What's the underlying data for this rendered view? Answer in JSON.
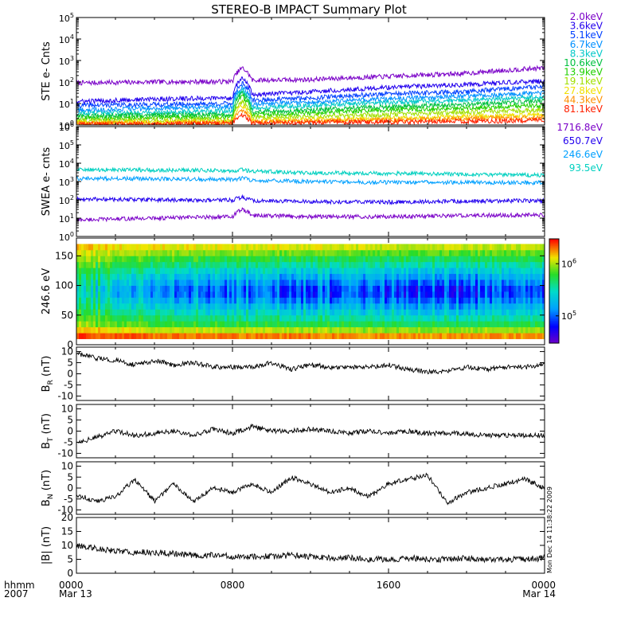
{
  "title": "STEREO-B IMPACT Summary Plot",
  "timestamp": "Mon Dec 14 11:38:22 2009",
  "x_axis": {
    "corner_labels": [
      "hhmm",
      "2007"
    ],
    "ticks": [
      {
        "hours": 0,
        "hhmm": "0000",
        "date": "Mar 13"
      },
      {
        "hours": 8,
        "hhmm": "0800",
        "date": ""
      },
      {
        "hours": 16,
        "hhmm": "1600",
        "date": ""
      },
      {
        "hours": 24,
        "hhmm": "0000",
        "date": "Mar 14"
      }
    ]
  },
  "colorbar": {
    "labels": [
      "10^6",
      "10^5"
    ],
    "label_values": [
      1000000,
      100000
    ],
    "range": [
      30000,
      3000000
    ],
    "scale": "log"
  },
  "chart_data": [
    {
      "type": "line",
      "id": "ste",
      "ylabel": "STE e- Cnts",
      "yscale": "log",
      "ylim": [
        1,
        100000
      ],
      "yticks": [
        "10^0",
        "10^1",
        "10^2",
        "10^3",
        "10^4",
        "10^5"
      ],
      "x": [
        0,
        4,
        8,
        8.5,
        9,
        12,
        16,
        20,
        24
      ],
      "series": [
        {
          "name": "2.0keV",
          "color": "#7a00c8",
          "values": [
            90,
            100,
            105,
            450,
            120,
            130,
            180,
            250,
            450
          ]
        },
        {
          "name": "3.6keV",
          "color": "#2200ee",
          "values": [
            12,
            16,
            18,
            150,
            25,
            35,
            55,
            75,
            110
          ]
        },
        {
          "name": "5.1keV",
          "color": "#0040ff",
          "values": [
            8,
            9,
            10,
            90,
            14,
            18,
            28,
            35,
            60
          ]
        },
        {
          "name": "6.7keV",
          "color": "#0090ff",
          "values": [
            5,
            6,
            7,
            60,
            9,
            11,
            16,
            22,
            30
          ]
        },
        {
          "name": "8.3keV",
          "color": "#00c8c8",
          "values": [
            3.5,
            4,
            4.5,
            40,
            6,
            8,
            11,
            14,
            20
          ]
        },
        {
          "name": "10.6keV",
          "color": "#00c040",
          "values": [
            2.5,
            3,
            3,
            30,
            4,
            5,
            7,
            9,
            13
          ]
        },
        {
          "name": "13.9keV",
          "color": "#20d000",
          "values": [
            2,
            2.2,
            2.4,
            20,
            3,
            3.5,
            5,
            6,
            8
          ]
        },
        {
          "name": "19.1keV",
          "color": "#a0e000",
          "values": [
            1.6,
            1.7,
            1.8,
            12,
            2.2,
            2.5,
            3,
            4,
            5
          ]
        },
        {
          "name": "27.8keV",
          "color": "#f0e000",
          "values": [
            1.3,
            1.4,
            1.5,
            8,
            1.6,
            1.8,
            2,
            2.5,
            3
          ]
        },
        {
          "name": "44.3keV",
          "color": "#ff9000",
          "values": [
            1.2,
            1.2,
            1.3,
            5,
            1.4,
            1.5,
            1.7,
            2,
            2.2
          ]
        },
        {
          "name": "81.1keV",
          "color": "#ff2000",
          "values": [
            1.1,
            1.1,
            1.2,
            3,
            1.2,
            1.3,
            1.4,
            1.5,
            1.6
          ]
        }
      ]
    },
    {
      "type": "line",
      "id": "swea",
      "ylabel": "SWEA e- cnts",
      "yscale": "log",
      "ylim": [
        1,
        1000000
      ],
      "yticks": [
        "10^0",
        "10^1",
        "10^2",
        "10^3",
        "10^4",
        "10^5",
        "10^6"
      ],
      "x": [
        0,
        4,
        8,
        8.5,
        9,
        12,
        16,
        20,
        24
      ],
      "series": [
        {
          "name": "1716.8eV",
          "color": "#7a00c8",
          "values": [
            8,
            10,
            12,
            30,
            14,
            12,
            12,
            14,
            15
          ]
        },
        {
          "name": "650.7eV",
          "color": "#2200ee",
          "values": [
            110,
            100,
            95,
            140,
            90,
            80,
            75,
            85,
            90
          ]
        },
        {
          "name": "246.6eV",
          "color": "#00a0ff",
          "values": [
            1500,
            1400,
            1300,
            1500,
            1200,
            1000,
            900,
            900,
            850
          ]
        },
        {
          "name": "93.5eV",
          "color": "#00d0c0",
          "values": [
            4500,
            4200,
            4000,
            4300,
            3600,
            3000,
            2800,
            2500,
            2200
          ]
        }
      ]
    },
    {
      "type": "heatmap",
      "id": "pad",
      "ylabel": "246.6 eV",
      "ylim": [
        0,
        180
      ],
      "yticks": [
        0,
        50,
        100,
        150
      ],
      "x_range": [
        0,
        24
      ],
      "y_range": [
        10,
        170
      ],
      "band_minimum_y": 90,
      "columns": [
        {
          "x": 0,
          "center_value": 300000,
          "edge_value": 1500000
        },
        {
          "x": 4,
          "center_value": 120000,
          "edge_value": 1300000
        },
        {
          "x": 8,
          "center_value": 90000,
          "edge_value": 1200000
        },
        {
          "x": 12,
          "center_value": 80000,
          "edge_value": 1200000
        },
        {
          "x": 16,
          "center_value": 70000,
          "edge_value": 1100000
        },
        {
          "x": 20,
          "center_value": 70000,
          "edge_value": 1100000
        },
        {
          "x": 24,
          "center_value": 80000,
          "edge_value": 1100000
        }
      ]
    },
    {
      "type": "line",
      "id": "br",
      "ylabel_main": "B",
      "ylabel_sub": "R",
      "ylabel_unit": "(nT)",
      "ylim": [
        -12,
        12
      ],
      "yticks": [
        -10,
        -5,
        0,
        5,
        10
      ],
      "x": [
        0,
        1,
        2,
        3,
        4,
        5,
        6,
        7,
        8,
        9,
        10,
        11,
        12,
        13,
        14,
        15,
        16,
        17,
        18,
        19,
        20,
        21,
        22,
        23,
        24
      ],
      "series": [
        {
          "name": "",
          "color": "#000000",
          "values": [
            9,
            7,
            6,
            4,
            6,
            4,
            5,
            3,
            3,
            3,
            5,
            2,
            4,
            3,
            3,
            3,
            4,
            2,
            1,
            1,
            3,
            2,
            3,
            3,
            4
          ]
        }
      ]
    },
    {
      "type": "line",
      "id": "bt",
      "ylabel_main": "B",
      "ylabel_sub": "T",
      "ylabel_unit": "(nT)",
      "ylim": [
        -12,
        12
      ],
      "yticks": [
        -10,
        -5,
        0,
        5,
        10
      ],
      "x": [
        0,
        1,
        2,
        3,
        4,
        5,
        6,
        7,
        8,
        9,
        10,
        11,
        12,
        13,
        14,
        15,
        16,
        17,
        18,
        19,
        20,
        21,
        22,
        23,
        24
      ],
      "series": [
        {
          "name": "",
          "color": "#000000",
          "values": [
            -5,
            -3,
            0,
            -2,
            -1,
            0,
            -2,
            1,
            -1,
            2,
            0,
            0,
            1,
            0,
            -1,
            0,
            -1,
            0,
            -1,
            -1,
            -1,
            -2,
            -2,
            -2,
            -2
          ]
        }
      ]
    },
    {
      "type": "line",
      "id": "bn",
      "ylabel_main": "B",
      "ylabel_sub": "N",
      "ylabel_unit": "(nT)",
      "ylim": [
        -12,
        12
      ],
      "yticks": [
        -10,
        -5,
        0,
        5,
        10
      ],
      "x": [
        0,
        1,
        2,
        3,
        4,
        5,
        6,
        7,
        8,
        9,
        10,
        11,
        12,
        13,
        14,
        15,
        16,
        17,
        18,
        19,
        20,
        21,
        22,
        23,
        24
      ],
      "series": [
        {
          "name": "",
          "color": "#000000",
          "values": [
            -3,
            -6,
            -4,
            4,
            -6,
            2,
            -6,
            0,
            -2,
            2,
            -2,
            5,
            2,
            -2,
            0,
            -4,
            2,
            4,
            6,
            -7,
            -2,
            0,
            2,
            4,
            0
          ]
        }
      ]
    },
    {
      "type": "line",
      "id": "bmag",
      "ylabel_main": "|B|",
      "ylabel_unit": "(nT)",
      "ylim": [
        0,
        20
      ],
      "yticks": [
        0,
        5,
        10,
        15,
        20
      ],
      "x": [
        0,
        1,
        2,
        3,
        4,
        5,
        6,
        7,
        8,
        9,
        10,
        11,
        12,
        13,
        14,
        15,
        16,
        17,
        18,
        19,
        20,
        21,
        22,
        23,
        24
      ],
      "series": [
        {
          "name": "",
          "color": "#000000",
          "values": [
            10,
            9,
            8,
            7.5,
            7.5,
            7,
            6.5,
            6.5,
            6,
            6,
            6,
            6.5,
            6,
            5.5,
            5.5,
            5,
            5,
            5.5,
            5,
            5,
            5.5,
            5,
            5,
            5,
            5.5
          ]
        }
      ]
    }
  ]
}
